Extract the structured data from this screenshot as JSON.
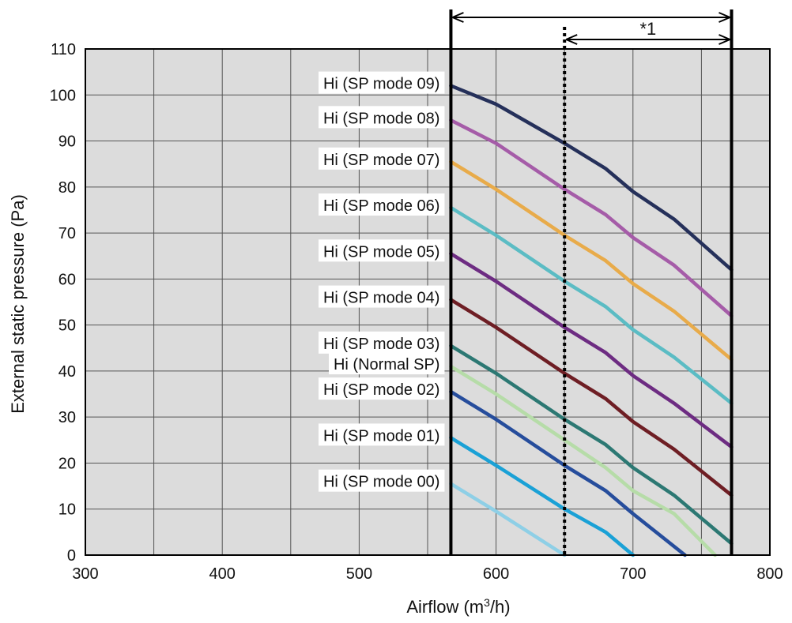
{
  "chart_data": {
    "type": "line",
    "xlabel": "Airflow (m",
    "xlabel_sup": "3",
    "xlabel_tail": "/h)",
    "ylabel": "External static pressure (Pa)",
    "xlim": [
      300,
      800
    ],
    "ylim": [
      0,
      110
    ],
    "x_ticks": [
      300,
      400,
      500,
      600,
      700,
      800
    ],
    "y_ticks": [
      0,
      10,
      20,
      30,
      40,
      50,
      60,
      70,
      80,
      90,
      100,
      110
    ],
    "x_grid_step": 50,
    "y_grid_step": 10,
    "grid": true,
    "plot_bg": "#dcdcdc",
    "range_lines": {
      "min": 567,
      "max": 772,
      "dotted": 650
    },
    "annotation": "*1",
    "series": [
      {
        "name": "Hi (SP mode 09)",
        "color": "#25305a",
        "points": [
          [
            567,
            102
          ],
          [
            600,
            98
          ],
          [
            650,
            89.5
          ],
          [
            680,
            84
          ],
          [
            700,
            79
          ],
          [
            730,
            73
          ],
          [
            772,
            62
          ]
        ]
      },
      {
        "name": "Hi (SP mode 08)",
        "color": "#a55ca8",
        "points": [
          [
            567,
            94.5
          ],
          [
            600,
            89.5
          ],
          [
            650,
            79.5
          ],
          [
            680,
            74
          ],
          [
            700,
            69
          ],
          [
            730,
            63
          ],
          [
            772,
            52
          ]
        ]
      },
      {
        "name": "Hi (SP mode 07)",
        "color": "#e8ab4a",
        "points": [
          [
            567,
            85.5
          ],
          [
            600,
            79.5
          ],
          [
            650,
            69.5
          ],
          [
            680,
            64
          ],
          [
            700,
            59
          ],
          [
            730,
            53
          ],
          [
            772,
            42.5
          ]
        ]
      },
      {
        "name": "Hi (SP mode 06)",
        "color": "#5bbcc4",
        "points": [
          [
            567,
            75.5
          ],
          [
            600,
            69.5
          ],
          [
            650,
            59.5
          ],
          [
            680,
            54
          ],
          [
            700,
            49
          ],
          [
            730,
            43
          ],
          [
            772,
            33
          ]
        ]
      },
      {
        "name": "Hi (SP mode 05)",
        "color": "#6d2c82",
        "points": [
          [
            567,
            65.5
          ],
          [
            600,
            59.5
          ],
          [
            650,
            49.5
          ],
          [
            680,
            44
          ],
          [
            700,
            39
          ],
          [
            730,
            33
          ],
          [
            772,
            23.5
          ]
        ]
      },
      {
        "name": "Hi (SP mode 04)",
        "color": "#6e1e24",
        "points": [
          [
            567,
            55.5
          ],
          [
            600,
            49.5
          ],
          [
            650,
            39.5
          ],
          [
            680,
            34
          ],
          [
            700,
            29
          ],
          [
            730,
            23
          ],
          [
            772,
            13
          ]
        ]
      },
      {
        "name": "Hi (SP mode 03)",
        "color": "#2c7873",
        "points": [
          [
            567,
            45.5
          ],
          [
            600,
            39.5
          ],
          [
            650,
            29.5
          ],
          [
            680,
            24
          ],
          [
            700,
            19
          ],
          [
            730,
            13
          ],
          [
            772,
            2.5
          ]
        ]
      },
      {
        "name": "Hi (Normal SP)",
        "color": "#b6dca8",
        "points": [
          [
            567,
            41
          ],
          [
            600,
            35
          ],
          [
            650,
            25
          ],
          [
            680,
            19
          ],
          [
            700,
            14
          ],
          [
            730,
            9
          ],
          [
            760,
            0
          ]
        ]
      },
      {
        "name": "Hi (SP mode 02)",
        "color": "#264d9c",
        "points": [
          [
            567,
            35.5
          ],
          [
            600,
            29.5
          ],
          [
            650,
            19.5
          ],
          [
            680,
            14
          ],
          [
            700,
            9
          ],
          [
            738,
            0
          ]
        ]
      },
      {
        "name": "Hi (SP mode 01)",
        "color": "#1aa1d6",
        "points": [
          [
            567,
            25.5
          ],
          [
            600,
            19.5
          ],
          [
            650,
            10
          ],
          [
            680,
            5
          ],
          [
            700,
            0
          ]
        ]
      },
      {
        "name": "Hi (SP mode 00)",
        "color": "#8ecfe6",
        "points": [
          [
            567,
            15.5
          ],
          [
            600,
            9.5
          ],
          [
            650,
            0
          ]
        ]
      }
    ]
  }
}
